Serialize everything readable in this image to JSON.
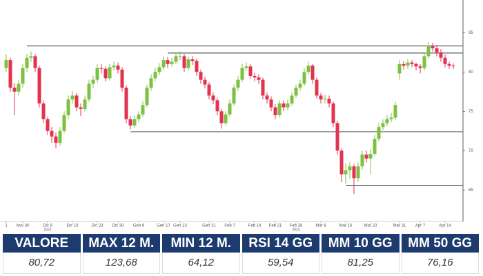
{
  "chart_data": {
    "type": "candlestick",
    "categories": [
      "1",
      null,
      null,
      null,
      "Nov 30",
      null,
      null,
      null,
      null,
      null,
      "Dic 8",
      null,
      null,
      null,
      null,
      null,
      "Dic 15",
      null,
      null,
      null,
      null,
      null,
      "Dic 23",
      null,
      null,
      null,
      null,
      "Dic 30",
      null,
      null,
      null,
      null,
      "Gen 9",
      null,
      null,
      null,
      null,
      null,
      "Gen 17",
      null,
      null,
      null,
      "Gen 23",
      null,
      null,
      null,
      null,
      null,
      null,
      "Gen 31",
      null,
      null,
      null,
      null,
      "Feb 7",
      null,
      null,
      null,
      null,
      null,
      "Feb 14",
      null,
      null,
      null,
      null,
      "Feb 21",
      null,
      null,
      null,
      null,
      "Feb 28",
      null,
      null,
      null,
      null,
      null,
      "Mar 8",
      null,
      null,
      null,
      null,
      null,
      "Mar 15",
      null,
      null,
      null,
      null,
      null,
      "Mar 23",
      null,
      null,
      null,
      null,
      null,
      null,
      "Mar 31",
      null,
      null,
      null,
      null,
      "Apr 7",
      null,
      null,
      null,
      null,
      null,
      "Apr 14",
      null,
      null
    ],
    "year_labels": [
      {
        "index": 10,
        "label": "2022"
      },
      {
        "index": 70,
        "label": "2023"
      }
    ],
    "open": [
      80.5,
      81.5,
      78,
      77.5,
      78.5,
      80.5,
      81.8,
      82,
      80.5,
      76,
      74,
      72.5,
      71.8,
      71,
      72.5,
      74.5,
      76.5,
      77,
      75.5,
      75.3,
      76.5,
      78.5,
      79,
      80.5,
      80.4,
      79.2,
      80.6,
      80.8,
      80.3,
      78,
      74,
      73.2,
      74,
      74.6,
      75.8,
      78,
      79.2,
      80,
      80.6,
      81.5,
      81,
      81.3,
      82,
      82,
      80.5,
      81.6,
      81.4,
      80,
      79,
      78.4,
      77,
      76.4,
      75,
      73.5,
      74.6,
      76,
      78,
      79,
      80.5,
      80.7,
      79.5,
      79.3,
      79,
      77,
      76.5,
      75.5,
      74.5,
      76,
      75.5,
      76,
      77,
      78,
      78.5,
      80,
      80.8,
      79,
      77,
      76.5,
      76.6,
      76,
      73.5,
      70,
      67,
      67.5,
      68,
      66.5,
      68,
      69.5,
      69,
      69.6,
      71.5,
      73,
      73.5,
      74,
      74.2,
      79.8,
      81,
      80.8,
      81.2,
      81,
      80.7,
      80.5,
      82,
      83.3,
      83,
      82.5,
      81.8,
      81,
      80.8
    ],
    "high": [
      82.3,
      81.8,
      78.6,
      79,
      81,
      82.3,
      82.6,
      82.3,
      80.8,
      76.4,
      74.3,
      73,
      72.3,
      73,
      75,
      77,
      77.6,
      77.3,
      76,
      77,
      79,
      79.5,
      81,
      81,
      80.7,
      81,
      81.3,
      81.2,
      80.6,
      78.3,
      74.4,
      74.5,
      75,
      76.3,
      78.4,
      79.7,
      80.5,
      81.1,
      82,
      81.9,
      81.8,
      82.5,
      82.6,
      82.3,
      82,
      82,
      81.7,
      80.3,
      79.4,
      78.7,
      77.4,
      76.7,
      75.3,
      75,
      76.5,
      78.4,
      79.5,
      81,
      81.2,
      81,
      79.9,
      79.7,
      79.3,
      77.4,
      76.9,
      75.9,
      76.4,
      76.4,
      76.5,
      77.4,
      78.4,
      79,
      80.5,
      81.3,
      81,
      79.3,
      77.3,
      77.1,
      77,
      76.3,
      73.8,
      70.3,
      68.4,
      68.5,
      68.3,
      68.5,
      70,
      70,
      70.2,
      72,
      73.5,
      74,
      74.5,
      74.8,
      76.2,
      81.5,
      81.4,
      81.6,
      81.5,
      81.2,
      81,
      82.4,
      83.8,
      83.7,
      83.4,
      82.9,
      82.2,
      81.3,
      81.1
    ],
    "low": [
      80,
      77.5,
      74.5,
      77,
      78,
      80,
      81.3,
      80,
      75.5,
      73.5,
      72,
      71,
      70.3,
      70.6,
      72.2,
      74,
      76,
      75,
      74.4,
      75,
      76.2,
      78,
      78.6,
      79.8,
      78.8,
      78.9,
      80.2,
      79.8,
      77.5,
      73.5,
      72.7,
      72.9,
      73.6,
      74.3,
      75.5,
      77.6,
      78.8,
      79.6,
      80.2,
      80.5,
      80.7,
      81,
      81.5,
      80,
      80.2,
      80.9,
      79.5,
      78.5,
      77.9,
      76.5,
      75.9,
      74.5,
      72.8,
      73.2,
      74.3,
      75.7,
      77.6,
      78.7,
      80.1,
      79.1,
      78.8,
      78.5,
      76.5,
      76,
      75,
      74,
      74.2,
      75,
      75.1,
      75.7,
      76.7,
      77.6,
      78.2,
      79.6,
      78.5,
      76.6,
      76,
      76,
      75.5,
      73,
      69.5,
      66,
      65.8,
      66.4,
      64.5,
      66,
      67.6,
      68.5,
      67,
      69.3,
      71.2,
      72.6,
      73.1,
      73.6,
      73.9,
      79,
      80.3,
      80.4,
      80.6,
      80.2,
      79.8,
      80.2,
      81.7,
      82.6,
      82,
      81.3,
      80.6,
      80.4,
      80.4
    ],
    "close": [
      81.5,
      78,
      77.5,
      78.5,
      80.5,
      81.8,
      82,
      80.5,
      76,
      74,
      72.5,
      71.8,
      71,
      72.5,
      74.5,
      76.5,
      77,
      75.5,
      75.3,
      76.5,
      78.5,
      79,
      80.5,
      80.4,
      79.2,
      80.6,
      80.8,
      80.3,
      78,
      74,
      73.2,
      74,
      74.6,
      75.8,
      78,
      79.2,
      80,
      80.6,
      81.5,
      81,
      81.3,
      82,
      82,
      80.5,
      81.6,
      81.4,
      80,
      79,
      78.4,
      77,
      76.4,
      75,
      73.5,
      74.6,
      76,
      78,
      79,
      80.5,
      80.7,
      79.5,
      79.3,
      79,
      77,
      76.5,
      75.5,
      74.5,
      76,
      75.5,
      76,
      77,
      78,
      78.5,
      80,
      80.8,
      79,
      77,
      76.5,
      76.6,
      76,
      73.5,
      70,
      67,
      67.5,
      68,
      66.5,
      68,
      69.5,
      69,
      69.6,
      71.5,
      73,
      73.5,
      74,
      74.2,
      75.8,
      81,
      80.8,
      81.2,
      81,
      80.7,
      80.5,
      82,
      83.3,
      83,
      82.5,
      81.8,
      81,
      80.8,
      80.72
    ],
    "up_color": "#7dc142",
    "down_color": "#e2334f",
    "levels": [
      {
        "value": 83.3,
        "start": 5
      },
      {
        "value": 82.4,
        "start": 39
      },
      {
        "value": 72.4,
        "start": 30
      },
      {
        "value": 65.6,
        "start": 82
      }
    ],
    "ylim": [
      61,
      88
    ],
    "yticks": [
      65,
      70,
      75,
      80,
      85
    ]
  },
  "table": {
    "headers": [
      "VALORE",
      "MAX 12 M.",
      "MIN 12 M.",
      "RSI 14 GG",
      "MM 10 GG",
      "MM 50 GG"
    ],
    "rows": [
      [
        "80,72",
        "123,68",
        "64,12",
        "59,54",
        "81,25",
        "76,16"
      ]
    ]
  }
}
